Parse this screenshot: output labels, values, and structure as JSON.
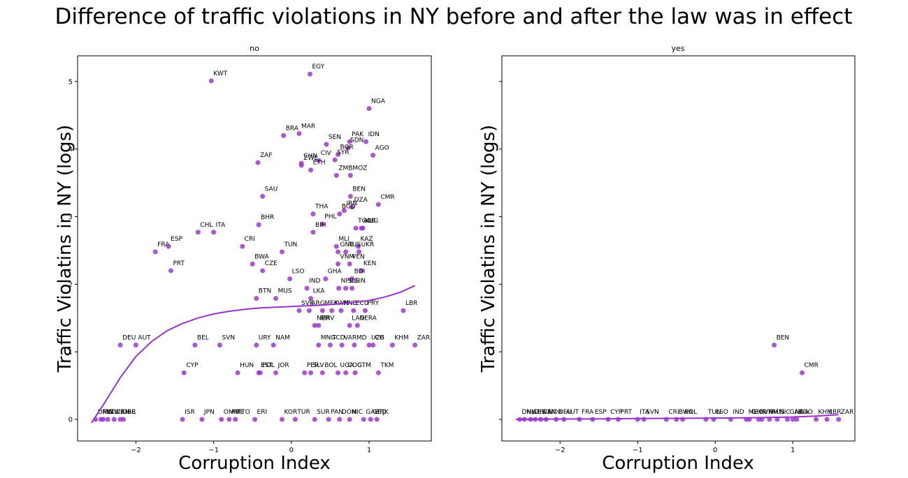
{
  "chart_data": {
    "title": "Difference of traffic violations in NY before and after the law was in effect",
    "type": "scatter",
    "xlabel": "Corruption Index",
    "ylabel": "Traffic Violatins in NY (logs)",
    "xlim": [
      -2.75,
      1.8
    ],
    "ylim": [
      -0.32,
      5.38
    ],
    "xticks": [
      -2,
      -1,
      0,
      1
    ],
    "yticks": [
      0,
      1,
      2,
      3,
      4,
      5
    ],
    "colors": {
      "points": "#9932cc",
      "fit": "#9932cc"
    },
    "panels": [
      {
        "title": "no",
        "show_ylabels": true,
        "fit": {
          "x": [
            -2.57,
            -2.4,
            -2.2,
            -2.0,
            -1.8,
            -1.6,
            -1.4,
            -1.2,
            -1.0,
            -0.8,
            -0.6,
            -0.4,
            -0.2,
            0.0,
            0.2,
            0.4,
            0.6,
            0.8,
            1.0,
            1.2,
            1.4,
            1.59
          ],
          "y": [
            -0.05,
            0.25,
            0.62,
            0.93,
            1.15,
            1.31,
            1.42,
            1.5,
            1.56,
            1.6,
            1.63,
            1.65,
            1.66,
            1.67,
            1.68,
            1.69,
            1.71,
            1.73,
            1.76,
            1.81,
            1.88,
            1.98
          ]
        },
        "points": [
          {
            "label": "KWT",
            "x": -1.03,
            "y": 5.01
          },
          {
            "label": "EGY",
            "x": 0.24,
            "y": 5.11
          },
          {
            "label": "NGA",
            "x": 1.0,
            "y": 4.6
          },
          {
            "label": "BRA",
            "x": -0.1,
            "y": 4.2
          },
          {
            "label": "MAR",
            "x": 0.1,
            "y": 4.23
          },
          {
            "label": "SEN",
            "x": 0.45,
            "y": 4.07
          },
          {
            "label": "PAK",
            "x": 0.75,
            "y": 4.11
          },
          {
            "label": "IDN",
            "x": 0.96,
            "y": 4.11
          },
          {
            "label": "SDN",
            "x": 0.73,
            "y": 4.02
          },
          {
            "label": "BGR",
            "x": 0.6,
            "y": 3.92
          },
          {
            "label": "AGO",
            "x": 1.05,
            "y": 3.91
          },
          {
            "label": "ZAF",
            "x": -0.43,
            "y": 3.8
          },
          {
            "label": "CHN",
            "x": 0.13,
            "y": 3.79
          },
          {
            "label": "ZWE",
            "x": 0.13,
            "y": 3.76
          },
          {
            "label": "CIV",
            "x": 0.35,
            "y": 3.83
          },
          {
            "label": "SYR",
            "x": 0.56,
            "y": 3.84
          },
          {
            "label": "ETH",
            "x": 0.25,
            "y": 3.69
          },
          {
            "label": "ZMB",
            "x": 0.58,
            "y": 3.61
          },
          {
            "label": "MOZ",
            "x": 0.76,
            "y": 3.61
          },
          {
            "label": "SAU",
            "x": -0.37,
            "y": 3.3
          },
          {
            "label": "BEN",
            "x": 0.76,
            "y": 3.3
          },
          {
            "label": "CMR",
            "x": 1.12,
            "y": 3.18
          },
          {
            "label": "DZA",
            "x": 0.78,
            "y": 3.14
          },
          {
            "label": "THA",
            "x": 0.28,
            "y": 3.04
          },
          {
            "label": "IRN",
            "x": 0.68,
            "y": 3.09
          },
          {
            "label": "BGD",
            "x": 0.62,
            "y": 3.04
          },
          {
            "label": "BHR",
            "x": -0.42,
            "y": 2.88
          },
          {
            "label": "CHL",
            "x": -1.2,
            "y": 2.77
          },
          {
            "label": "ITA",
            "x": -1.0,
            "y": 2.77
          },
          {
            "label": "TGO",
            "x": 0.83,
            "y": 2.83
          },
          {
            "label": "ALB",
            "x": 0.9,
            "y": 2.83
          },
          {
            "label": "PHL",
            "x": 0.4,
            "y": 2.89
          },
          {
            "label": "YUG",
            "x": 0.92,
            "y": 2.83
          },
          {
            "label": "BIH",
            "x": 0.28,
            "y": 2.77
          },
          {
            "label": "CRI",
            "x": -0.63,
            "y": 2.56
          },
          {
            "label": "FRA",
            "x": -1.75,
            "y": 2.48
          },
          {
            "label": "ESP",
            "x": -1.58,
            "y": 2.56
          },
          {
            "label": "MLI",
            "x": 0.58,
            "y": 2.56
          },
          {
            "label": "KAZ",
            "x": 0.86,
            "y": 2.56
          },
          {
            "label": "TUN",
            "x": -0.12,
            "y": 2.48
          },
          {
            "label": "GNB",
            "x": 0.6,
            "y": 2.48
          },
          {
            "label": "RUS",
            "x": 0.7,
            "y": 2.48
          },
          {
            "label": "UKR",
            "x": 0.87,
            "y": 2.48
          },
          {
            "label": "BWA",
            "x": -0.5,
            "y": 2.3
          },
          {
            "label": "VNM",
            "x": 0.6,
            "y": 2.3
          },
          {
            "label": "VEN",
            "x": 0.75,
            "y": 2.3
          },
          {
            "label": "CZE",
            "x": -0.37,
            "y": 2.2
          },
          {
            "label": "PRT",
            "x": -1.55,
            "y": 2.2
          },
          {
            "label": "KEN",
            "x": 0.9,
            "y": 2.2
          },
          {
            "label": "LSO",
            "x": -0.02,
            "y": 2.08
          },
          {
            "label": "GHA",
            "x": 0.44,
            "y": 2.08
          },
          {
            "label": "BDI",
            "x": 0.78,
            "y": 2.08
          },
          {
            "label": "IND",
            "x": 0.2,
            "y": 1.94
          },
          {
            "label": "NPL",
            "x": 0.61,
            "y": 1.94
          },
          {
            "label": "SLE",
            "x": 0.7,
            "y": 1.94
          },
          {
            "label": "GIN",
            "x": 0.78,
            "y": 1.94
          },
          {
            "label": "BTN",
            "x": -0.45,
            "y": 1.79
          },
          {
            "label": "MUS",
            "x": -0.2,
            "y": 1.79
          },
          {
            "label": "LKA",
            "x": 0.25,
            "y": 1.79
          },
          {
            "label": "SVK",
            "x": 0.1,
            "y": 1.61
          },
          {
            "label": "ARG",
            "x": 0.23,
            "y": 1.61
          },
          {
            "label": "MEX",
            "x": 0.4,
            "y": 1.61
          },
          {
            "label": "KWN",
            "x": 0.52,
            "y": 1.61
          },
          {
            "label": "HND",
            "x": 0.64,
            "y": 1.61
          },
          {
            "label": "ECU",
            "x": 0.8,
            "y": 1.61
          },
          {
            "label": "PRY",
            "x": 0.95,
            "y": 1.61
          },
          {
            "label": "LBR",
            "x": 1.44,
            "y": 1.61
          },
          {
            "label": "NER",
            "x": 0.3,
            "y": 1.39
          },
          {
            "label": "MRV",
            "x": 0.35,
            "y": 1.39
          },
          {
            "label": "LAO",
            "x": 0.75,
            "y": 1.39
          },
          {
            "label": "NERA",
            "x": 0.85,
            "y": 1.39
          },
          {
            "label": "DEU",
            "x": -2.2,
            "y": 1.1
          },
          {
            "label": "AUT",
            "x": -2.0,
            "y": 1.1
          },
          {
            "label": "BEL",
            "x": -1.24,
            "y": 1.1
          },
          {
            "label": "SVN",
            "x": -0.92,
            "y": 1.1
          },
          {
            "label": "URY",
            "x": -0.45,
            "y": 1.1
          },
          {
            "label": "NAM",
            "x": -0.23,
            "y": 1.1
          },
          {
            "label": "MNG",
            "x": 0.35,
            "y": 1.1
          },
          {
            "label": "TCD",
            "x": 0.5,
            "y": 1.1
          },
          {
            "label": "VAR",
            "x": 0.65,
            "y": 1.1
          },
          {
            "label": "MD",
            "x": 0.81,
            "y": 1.1
          },
          {
            "label": "UZB",
            "x": 1.0,
            "y": 1.1
          },
          {
            "label": "CG",
            "x": 1.05,
            "y": 1.1
          },
          {
            "label": "KHM",
            "x": 1.3,
            "y": 1.1
          },
          {
            "label": "ZAR",
            "x": 1.59,
            "y": 1.1
          },
          {
            "label": "CYP",
            "x": -1.38,
            "y": 0.69
          },
          {
            "label": "HUN",
            "x": -0.69,
            "y": 0.69
          },
          {
            "label": "POL",
            "x": -0.4,
            "y": 0.69
          },
          {
            "label": "EST",
            "x": -0.42,
            "y": 0.69
          },
          {
            "label": "JOR",
            "x": -0.2,
            "y": 0.69
          },
          {
            "label": "PER",
            "x": 0.17,
            "y": 0.69
          },
          {
            "label": "SLV",
            "x": 0.25,
            "y": 0.69
          },
          {
            "label": "BOL",
            "x": 0.4,
            "y": 0.69
          },
          {
            "label": "UGA",
            "x": 0.6,
            "y": 0.69
          },
          {
            "label": "COG",
            "x": 0.7,
            "y": 0.69
          },
          {
            "label": "GTM",
            "x": 0.82,
            "y": 0.69
          },
          {
            "label": "TKM",
            "x": 1.12,
            "y": 0.69
          },
          {
            "label": "DNK",
            "x": -2.52,
            "y": 0.0
          },
          {
            "label": "FIN",
            "x": -2.45,
            "y": 0.0
          },
          {
            "label": "NZL",
            "x": -2.42,
            "y": 0.0
          },
          {
            "label": "SWE",
            "x": -2.36,
            "y": 0.0
          },
          {
            "label": "CAN",
            "x": -2.28,
            "y": 0.0
          },
          {
            "label": "GBR",
            "x": -2.2,
            "y": 0.0
          },
          {
            "label": "IRL",
            "x": -2.16,
            "y": 0.0
          },
          {
            "label": "ISR",
            "x": -1.4,
            "y": 0.0
          },
          {
            "label": "JPN",
            "x": -1.15,
            "y": 0.0
          },
          {
            "label": "OMN",
            "x": -0.9,
            "y": 0.0
          },
          {
            "label": "ARE",
            "x": -0.8,
            "y": 0.0
          },
          {
            "label": "TTO",
            "x": -0.72,
            "y": 0.0
          },
          {
            "label": "ERI",
            "x": -0.47,
            "y": 0.0
          },
          {
            "label": "KOR",
            "x": -0.12,
            "y": 0.0
          },
          {
            "label": "TUR",
            "x": 0.05,
            "y": 0.0
          },
          {
            "label": "SUR",
            "x": 0.3,
            "y": 0.0
          },
          {
            "label": "PAN",
            "x": 0.48,
            "y": 0.0
          },
          {
            "label": "DOM",
            "x": 0.62,
            "y": 0.0
          },
          {
            "label": "NIC",
            "x": 0.75,
            "y": 0.0
          },
          {
            "label": "GAB",
            "x": 0.93,
            "y": 0.0
          },
          {
            "label": "GEO",
            "x": 1.02,
            "y": 0.0
          },
          {
            "label": "TJK",
            "x": 1.1,
            "y": 0.0
          }
        ]
      },
      {
        "title": "yes",
        "show_ylabels": false,
        "fit": {
          "x": [
            -2.57,
            -2.0,
            -1.5,
            -1.0,
            -0.5,
            0.0,
            0.5,
            1.0,
            1.3,
            1.59
          ],
          "y": [
            0.0,
            0.005,
            0.008,
            0.012,
            0.016,
            0.02,
            0.025,
            0.035,
            0.05,
            0.07
          ]
        },
        "points": [
          {
            "label": "BEN",
            "x": 0.76,
            "y": 1.1
          },
          {
            "label": "CMR",
            "x": 1.12,
            "y": 0.69
          },
          {
            "label": "DNK",
            "x": -2.52,
            "y": 0.0
          },
          {
            "label": "NLD",
            "x": -2.46,
            "y": 0.0
          },
          {
            "label": "AUS",
            "x": -2.38,
            "y": 0.0
          },
          {
            "label": "SWE",
            "x": -2.32,
            "y": 0.0
          },
          {
            "label": "CAN",
            "x": -2.25,
            "y": 0.0
          },
          {
            "label": "NOR",
            "x": -2.18,
            "y": 0.0
          },
          {
            "label": "DEU",
            "x": -2.05,
            "y": 0.0
          },
          {
            "label": "AUT",
            "x": -1.95,
            "y": 0.0
          },
          {
            "label": "FRA",
            "x": -1.75,
            "y": 0.0
          },
          {
            "label": "ESP",
            "x": -1.58,
            "y": 0.0
          },
          {
            "label": "CYP",
            "x": -1.38,
            "y": 0.0
          },
          {
            "label": "PRT",
            "x": -1.25,
            "y": 0.0
          },
          {
            "label": "ITA",
            "x": -1.0,
            "y": 0.0
          },
          {
            "label": "SVN",
            "x": -0.92,
            "y": 0.0
          },
          {
            "label": "CRI",
            "x": -0.63,
            "y": 0.0
          },
          {
            "label": "POL",
            "x": -0.42,
            "y": 0.0
          },
          {
            "label": "BWA",
            "x": -0.5,
            "y": 0.0
          },
          {
            "label": "TUN",
            "x": -0.12,
            "y": 0.0
          },
          {
            "label": "LSO",
            "x": -0.02,
            "y": 0.0
          },
          {
            "label": "IND",
            "x": 0.2,
            "y": 0.0
          },
          {
            "label": "MEX",
            "x": 0.4,
            "y": 0.0
          },
          {
            "label": "GHA",
            "x": 0.44,
            "y": 0.0
          },
          {
            "label": "SYR",
            "x": 0.56,
            "y": 0.0
          },
          {
            "label": "VNM",
            "x": 0.6,
            "y": 0.0
          },
          {
            "label": "RUS",
            "x": 0.7,
            "y": 0.0
          },
          {
            "label": "NIC",
            "x": 0.8,
            "y": 0.0
          },
          {
            "label": "GAB",
            "x": 0.93,
            "y": 0.0
          },
          {
            "label": "NGA",
            "x": 1.0,
            "y": 0.0
          },
          {
            "label": "AGO",
            "x": 1.05,
            "y": 0.0
          },
          {
            "label": "KHM",
            "x": 1.3,
            "y": 0.0
          },
          {
            "label": "LBR",
            "x": 1.44,
            "y": 0.0
          },
          {
            "label": "ZAR",
            "x": 1.59,
            "y": 0.0
          }
        ]
      }
    ]
  }
}
